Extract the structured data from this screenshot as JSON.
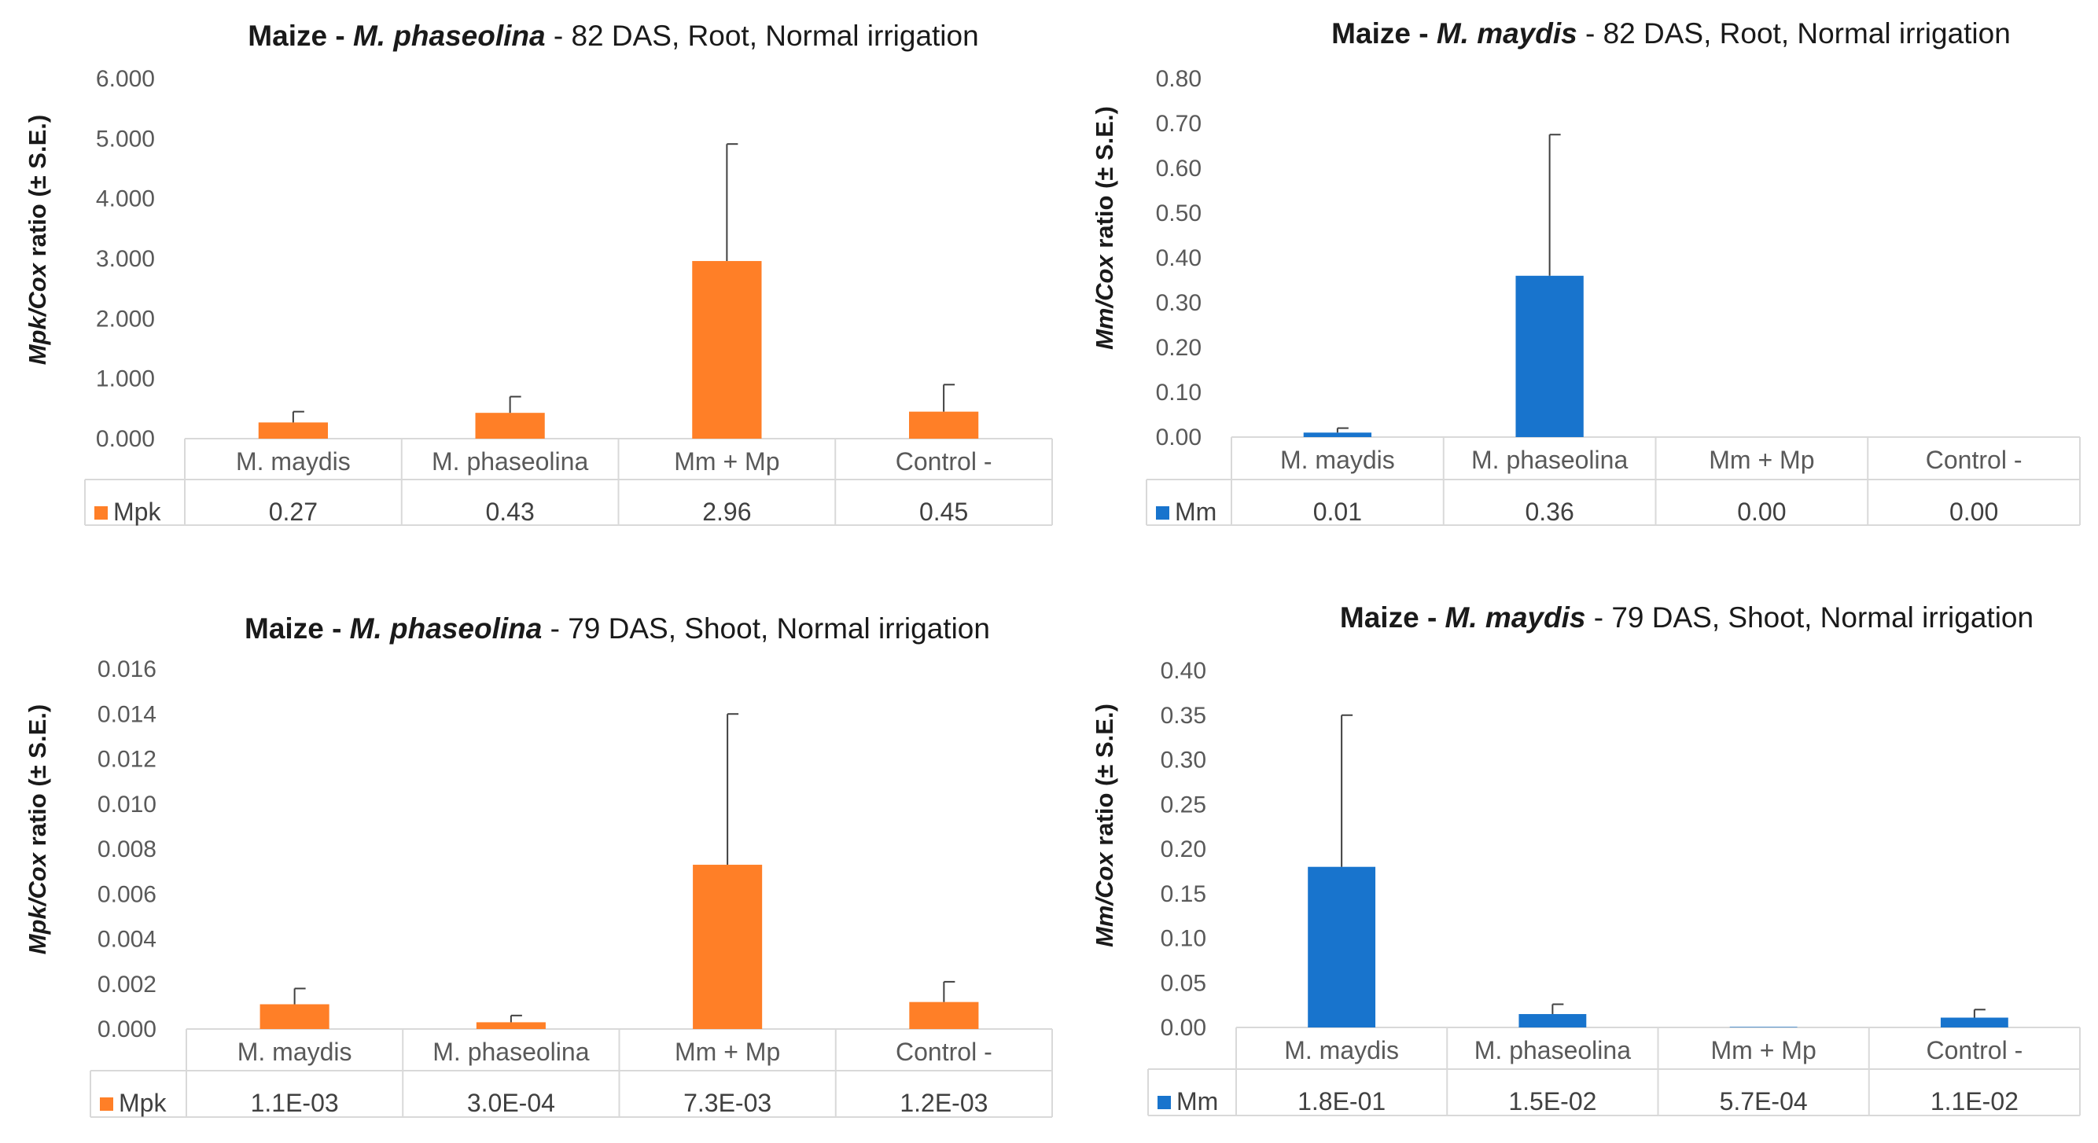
{
  "colors": {
    "orange": "#FF7F27",
    "blue": "#1874CD",
    "grid": "#D9D9D9",
    "text": "#595959",
    "error_bar": "#404040"
  },
  "chart_data": [
    {
      "type": "bar",
      "title_prefix": "Maize - ",
      "title_species": "M. phaseolina",
      "title_suffix": " - 82 DAS, Root, Normal irrigation",
      "ylabel_italic": "Mpk/Cox",
      "ylabel_rest": " ratio (± S.E.)",
      "yticks": [
        "6.000",
        "5.000",
        "4.000",
        "3.000",
        "2.000",
        "1.000",
        "0.000"
      ],
      "ylim": [
        0,
        6
      ],
      "categories": [
        "M. maydis",
        "M. phaseolina",
        "Mm + Mp",
        "Control -"
      ],
      "series": [
        {
          "name": "Mpk",
          "color": "#FF7F27",
          "values": [
            0.27,
            0.43,
            2.96,
            0.45
          ],
          "errors": [
            0.18,
            0.27,
            1.95,
            0.45
          ],
          "value_labels": [
            "0.27",
            "0.43",
            "2.96",
            "0.45"
          ]
        }
      ]
    },
    {
      "type": "bar",
      "title_prefix": "Maize - ",
      "title_species": "M. maydis",
      "title_suffix": " - 82 DAS, Root, Normal irrigation",
      "ylabel_italic": "Mm/Cox",
      "ylabel_rest": " ratio (± S.E.)",
      "yticks": [
        "0.80",
        "0.70",
        "0.60",
        "0.50",
        "0.40",
        "0.30",
        "0.20",
        "0.10",
        "0.00"
      ],
      "ylim": [
        0,
        0.8
      ],
      "categories": [
        "M. maydis",
        "M. phaseolina",
        "Mm + Mp",
        "Control -"
      ],
      "series": [
        {
          "name": "Mm",
          "color": "#1874CD",
          "values": [
            0.01,
            0.36,
            0.0,
            0.0
          ],
          "errors": [
            0.01,
            0.315,
            0,
            0
          ],
          "value_labels": [
            "0.01",
            "0.36",
            "0.00",
            "0.00"
          ]
        }
      ]
    },
    {
      "type": "bar",
      "title_prefix": "Maize - ",
      "title_species": "M. phaseolina",
      "title_suffix": " - 79 DAS, Shoot, Normal irrigation",
      "ylabel_italic": "Mpk/Cox",
      "ylabel_rest": " ratio (± S.E.)",
      "yticks": [
        "0.016",
        "0.014",
        "0.012",
        "0.010",
        "0.008",
        "0.006",
        "0.004",
        "0.002",
        "0.000"
      ],
      "ylim": [
        0,
        0.016
      ],
      "categories": [
        "M. maydis",
        "M. phaseolina",
        "Mm + Mp",
        "Control -"
      ],
      "series": [
        {
          "name": "Mpk",
          "color": "#FF7F27",
          "values": [
            0.0011,
            0.0003,
            0.0073,
            0.0012
          ],
          "errors": [
            0.0007,
            0.0003,
            0.0067,
            0.0009
          ],
          "value_labels": [
            "1.1E-03",
            "3.0E-04",
            "7.3E-03",
            "1.2E-03"
          ]
        }
      ]
    },
    {
      "type": "bar",
      "title_prefix": "Maize - ",
      "title_species": "M. maydis",
      "title_suffix": " - 79 DAS, Shoot, Normal irrigation",
      "ylabel_italic": "Mm/Cox",
      "ylabel_rest": " ratio (± S.E.)",
      "yticks": [
        "0.40",
        "0.35",
        "0.30",
        "0.25",
        "0.20",
        "0.15",
        "0.10",
        "0.05",
        "0.00"
      ],
      "ylim": [
        0,
        0.4
      ],
      "categories": [
        "M. maydis",
        "M. phaseolina",
        "Mm + Mp",
        "Control -"
      ],
      "series": [
        {
          "name": "Mm",
          "color": "#1874CD",
          "values": [
            0.18,
            0.015,
            0.00057,
            0.011
          ],
          "errors": [
            0.17,
            0.011,
            0,
            0.009
          ],
          "value_labels": [
            "1.8E-01",
            "1.5E-02",
            "5.7E-04",
            "1.1E-02"
          ]
        }
      ]
    }
  ]
}
